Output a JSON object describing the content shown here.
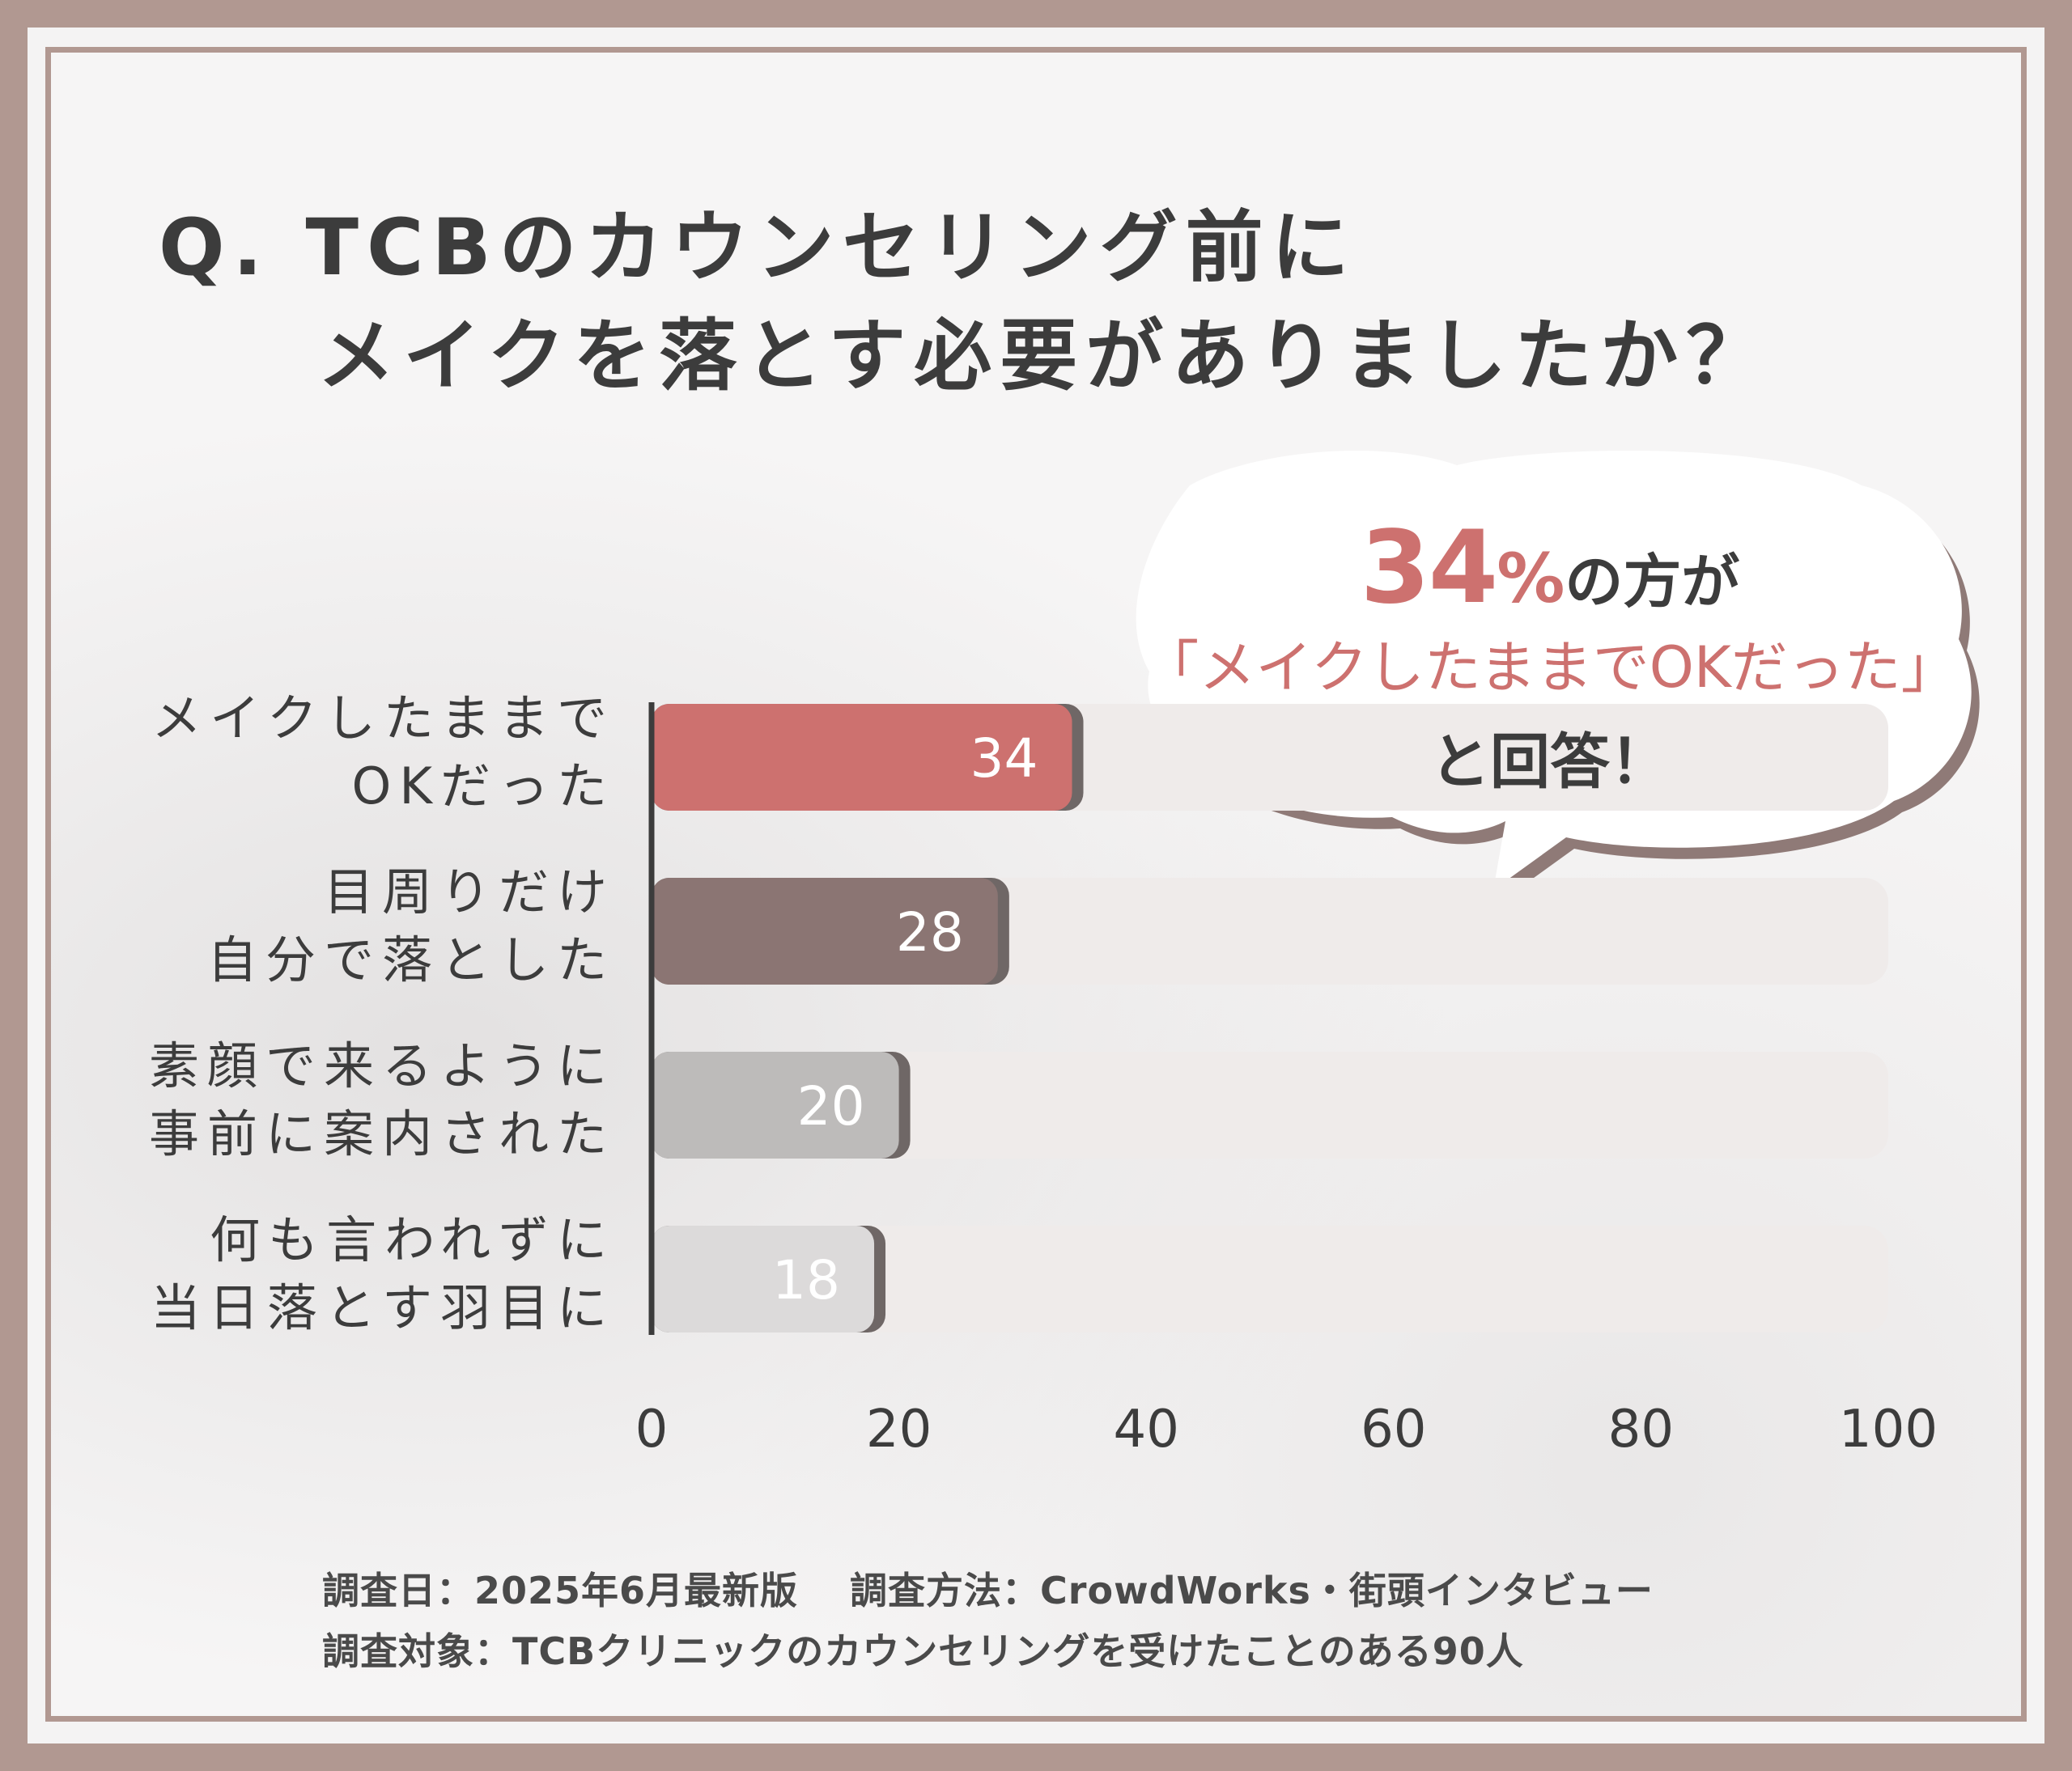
{
  "title": {
    "line1": "Q. TCBのカウンセリング前に",
    "line2": "メイクを落とす必要がありましたか？"
  },
  "callout": {
    "value": "34",
    "percent": "%",
    "line1_suffix": "の方が",
    "line2": "「メイクしたままでOKだった」",
    "line3": "と回答！"
  },
  "footer": {
    "line1": "調査日：2025年6月最新版　 調査方法：CrowdWorks・街頭インタビュー",
    "line2": "調査対象：TCBクリニックのカウンセリングを受けたことのある90人"
  },
  "chart_data": {
    "type": "bar",
    "orientation": "horizontal",
    "categories": [
      [
        "メイクしたままで",
        "OKだった"
      ],
      [
        "目周りだけ",
        "自分で落とした"
      ],
      [
        "素顔で来るように",
        "事前に案内された"
      ],
      [
        "何も言われずに",
        "当日落とす羽目に"
      ]
    ],
    "values": [
      34,
      28,
      20,
      18
    ],
    "value_labels": [
      "34",
      "28",
      "20",
      "18"
    ],
    "xlim": [
      0,
      100
    ],
    "xticks": [
      "0",
      "20",
      "40",
      "60",
      "80",
      "100"
    ],
    "grid": false,
    "colors": {
      "bars": [
        "#cd716f",
        "#8b7573",
        "#bdbbba",
        "#dcdada"
      ],
      "track": "#efebea",
      "axis": "#3c3c3c",
      "frame": "#b19891"
    }
  }
}
